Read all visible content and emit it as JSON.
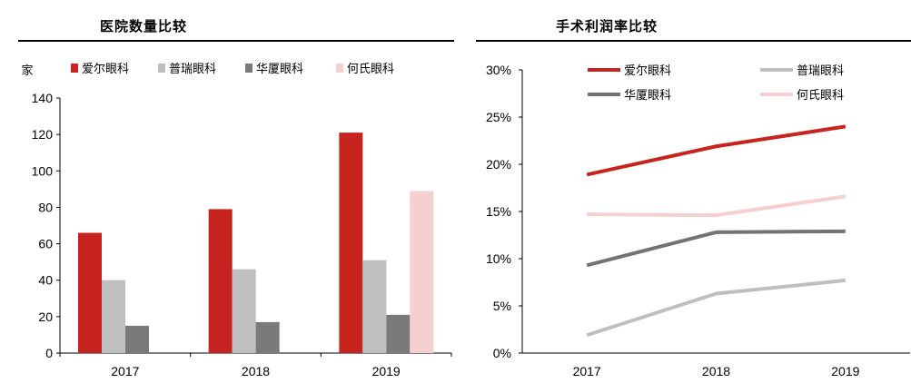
{
  "chart_data": [
    {
      "type": "bar",
      "title": "医院数量比较",
      "ylabel": "家",
      "categories": [
        "2017",
        "2018",
        "2019"
      ],
      "ylim": [
        0,
        140
      ],
      "yticks": [
        0,
        20,
        40,
        60,
        80,
        100,
        120,
        140
      ],
      "series": [
        {
          "name": "爱尔眼科",
          "color": "#c8241f",
          "values": [
            66,
            79,
            121
          ]
        },
        {
          "name": "普瑞眼科",
          "color": "#bfbfbf",
          "values": [
            40,
            46,
            51
          ]
        },
        {
          "name": "华厦眼科",
          "color": "#7a7a7a",
          "values": [
            15,
            17,
            21
          ]
        },
        {
          "name": "何氏眼科",
          "color": "#f6cfd0",
          "values": [
            null,
            null,
            89
          ]
        }
      ],
      "legend": "top",
      "grid": false
    },
    {
      "type": "line",
      "title": "手术利润率比较",
      "categories": [
        "2017",
        "2018",
        "2019"
      ],
      "ylim": [
        0,
        30
      ],
      "yticks": [
        "0%",
        "5%",
        "10%",
        "15%",
        "20%",
        "25%",
        "30%"
      ],
      "series": [
        {
          "name": "爱尔眼科",
          "color": "#c8241f",
          "values": [
            18.9,
            21.9,
            24.0
          ]
        },
        {
          "name": "普瑞眼科",
          "color": "#bfbfbf",
          "values": [
            1.9,
            6.3,
            7.7
          ]
        },
        {
          "name": "华厦眼科",
          "color": "#737373",
          "values": [
            9.3,
            12.8,
            12.9
          ]
        },
        {
          "name": "何氏眼科",
          "color": "#f6cfd0",
          "values": [
            14.7,
            14.6,
            16.6
          ]
        }
      ],
      "legend": "top",
      "grid": false
    }
  ]
}
